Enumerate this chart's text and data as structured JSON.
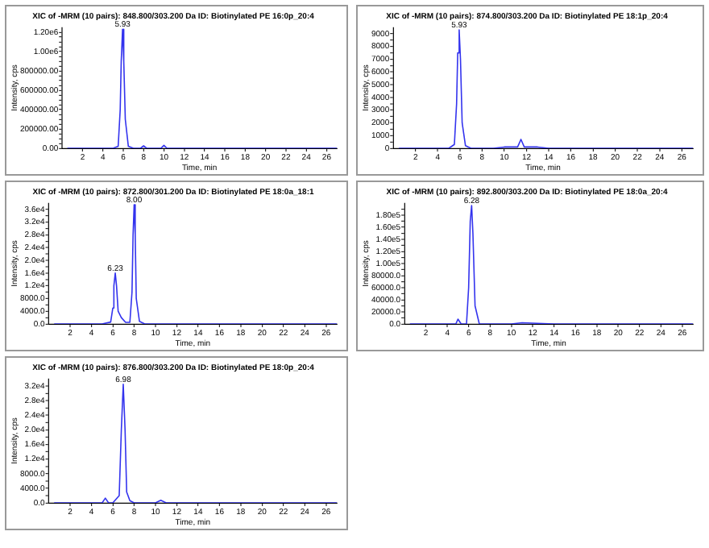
{
  "chart_data": [
    {
      "type": "line",
      "title": "XIC of -MRM (10 pairs): 848.800/303.200 Da ID: Biotinylated PE 16:0p_20:4",
      "xlabel": "Time, min",
      "ylabel": "Intensity, cps",
      "xlim": [
        0,
        27
      ],
      "xticks": [
        2,
        4,
        6,
        8,
        10,
        12,
        14,
        16,
        18,
        20,
        22,
        24,
        26
      ],
      "ylim": [
        0,
        1250000
      ],
      "yticks": [
        {
          "value": 0,
          "label": "0.00"
        },
        {
          "value": 50000,
          "label": null
        },
        {
          "value": 100000,
          "label": null
        },
        {
          "value": 150000,
          "label": null
        },
        {
          "value": 200000,
          "label": "200000.00"
        },
        {
          "value": 250000,
          "label": null
        },
        {
          "value": 300000,
          "label": null
        },
        {
          "value": 350000,
          "label": null
        },
        {
          "value": 400000,
          "label": "400000.00"
        },
        {
          "value": 450000,
          "label": null
        },
        {
          "value": 500000,
          "label": null
        },
        {
          "value": 550000,
          "label": null
        },
        {
          "value": 600000,
          "label": "600000.00"
        },
        {
          "value": 650000,
          "label": null
        },
        {
          "value": 700000,
          "label": null
        },
        {
          "value": 750000,
          "label": null
        },
        {
          "value": 800000,
          "label": "800000.00"
        },
        {
          "value": 850000,
          "label": null
        },
        {
          "value": 900000,
          "label": null
        },
        {
          "value": 950000,
          "label": null
        },
        {
          "value": 1000000,
          "label": "1.00e6"
        },
        {
          "value": 1050000,
          "label": null
        },
        {
          "value": 1100000,
          "label": null
        },
        {
          "value": 1150000,
          "label": null
        },
        {
          "value": 1200000,
          "label": "1.20e6"
        }
      ],
      "annotations": [
        {
          "text": "5.93",
          "x": 5.93,
          "y": 1230000
        }
      ],
      "series": [
        {
          "color": "#3333ee",
          "x": [
            0.5,
            2,
            4,
            5,
            5.5,
            5.7,
            5.8,
            5.93,
            6.05,
            6.2,
            6.5,
            7,
            7.7,
            8,
            8.3,
            9,
            9.7,
            10,
            10.3,
            11,
            14,
            18,
            22,
            26,
            27
          ],
          "values": [
            0,
            0,
            0,
            0,
            20000,
            400000,
            900000,
            1230000,
            900000,
            300000,
            20000,
            0,
            0,
            25000,
            0,
            0,
            0,
            30000,
            0,
            0,
            0,
            0,
            0,
            0,
            0
          ]
        }
      ]
    },
    {
      "type": "line",
      "title": "XIC of -MRM (10 pairs): 874.800/303.200 Da ID: Biotinylated PE 18:1p_20:4",
      "xlabel": "Time, min",
      "ylabel": "Intensity, cps",
      "xlim": [
        0,
        27
      ],
      "xticks": [
        2,
        4,
        6,
        8,
        10,
        12,
        14,
        16,
        18,
        20,
        22,
        24,
        26
      ],
      "ylim": [
        0,
        9500
      ],
      "yticks": [
        0,
        {
          "value": 500,
          "label": null
        },
        1000,
        {
          "value": 1500,
          "label": null
        },
        2000,
        {
          "value": 2500,
          "label": null
        },
        3000,
        {
          "value": 3500,
          "label": null
        },
        4000,
        {
          "value": 4500,
          "label": null
        },
        5000,
        {
          "value": 5500,
          "label": null
        },
        6000,
        {
          "value": 6500,
          "label": null
        },
        7000,
        {
          "value": 7500,
          "label": null
        },
        8000,
        {
          "value": 8500,
          "label": null
        },
        9000
      ],
      "annotations": [
        {
          "text": "5.93",
          "x": 5.93,
          "y": 9300
        }
      ],
      "series": [
        {
          "color": "#3333ee",
          "x": [
            0.5,
            2,
            4,
            5,
            5.5,
            5.7,
            5.8,
            5.93,
            6.05,
            6.2,
            6.5,
            7,
            9,
            10,
            11.2,
            11.5,
            11.8,
            12.5,
            13,
            14,
            18,
            22,
            26,
            27
          ],
          "values": [
            0,
            0,
            0,
            0,
            300,
            3500,
            7500,
            9300,
            7000,
            2000,
            200,
            0,
            0,
            100,
            100,
            700,
            100,
            100,
            100,
            0,
            0,
            0,
            0,
            0
          ]
        }
      ]
    },
    {
      "type": "line",
      "title": "XIC of -MRM (10 pairs): 872.800/301.200 Da ID: Biotinylated PE 18:0a_18:1",
      "xlabel": "Time, min",
      "ylabel": "Intensity, cps",
      "xlim": [
        0,
        27
      ],
      "xticks": [
        2,
        4,
        6,
        8,
        10,
        12,
        14,
        16,
        18,
        20,
        22,
        24,
        26
      ],
      "ylim": [
        0,
        38000
      ],
      "yticks": [
        {
          "value": 0,
          "label": "0.0"
        },
        {
          "value": 2000,
          "label": null
        },
        {
          "value": 4000,
          "label": "4000.0"
        },
        {
          "value": 6000,
          "label": null
        },
        {
          "value": 8000,
          "label": "8000.0"
        },
        {
          "value": 10000,
          "label": null
        },
        {
          "value": 12000,
          "label": "1.2e4"
        },
        {
          "value": 14000,
          "label": null
        },
        {
          "value": 16000,
          "label": "1.6e4"
        },
        {
          "value": 18000,
          "label": null
        },
        {
          "value": 20000,
          "label": "2.0e4"
        },
        {
          "value": 22000,
          "label": null
        },
        {
          "value": 24000,
          "label": "2.4e4"
        },
        {
          "value": 26000,
          "label": null
        },
        {
          "value": 28000,
          "label": "2.8e4"
        },
        {
          "value": 30000,
          "label": null
        },
        {
          "value": 32000,
          "label": "3.2e4"
        },
        {
          "value": 34000,
          "label": null
        },
        {
          "value": 36000,
          "label": "3.6e4"
        }
      ],
      "annotations": [
        {
          "text": "6.23",
          "x": 6.23,
          "y": 16000
        },
        {
          "text": "8.00",
          "x": 8.0,
          "y": 37500
        }
      ],
      "series": [
        {
          "color": "#3333ee",
          "x": [
            0.5,
            2,
            4,
            5,
            5.8,
            6,
            6.1,
            6.23,
            6.35,
            6.5,
            6.8,
            7.2,
            7.6,
            7.8,
            7.9,
            8.0,
            8.1,
            8.2,
            8.5,
            9,
            10,
            14,
            18,
            22,
            26,
            27
          ],
          "values": [
            0,
            0,
            0,
            0,
            600,
            5000,
            12000,
            16000,
            12000,
            4000,
            2000,
            500,
            500,
            10000,
            28000,
            37500,
            28000,
            8000,
            800,
            0,
            0,
            0,
            0,
            0,
            0,
            0
          ]
        }
      ]
    },
    {
      "type": "line",
      "title": "XIC of -MRM (10 pairs): 892.800/303.200 Da ID: Biotinylated PE 18:0a_20:4",
      "xlabel": "Time, min",
      "ylabel": "Intensity, cps",
      "xlim": [
        0,
        27
      ],
      "xticks": [
        2,
        4,
        6,
        8,
        10,
        12,
        14,
        16,
        18,
        20,
        22,
        24,
        26
      ],
      "ylim": [
        0,
        200000
      ],
      "yticks": [
        {
          "value": 0,
          "label": "0.0"
        },
        {
          "value": 10000,
          "label": null
        },
        {
          "value": 20000,
          "label": "20000.0"
        },
        {
          "value": 30000,
          "label": null
        },
        {
          "value": 40000,
          "label": "40000.0"
        },
        {
          "value": 50000,
          "label": null
        },
        {
          "value": 60000,
          "label": "60000.0"
        },
        {
          "value": 70000,
          "label": null
        },
        {
          "value": 80000,
          "label": "80000.0"
        },
        {
          "value": 90000,
          "label": null
        },
        {
          "value": 100000,
          "label": "1.00e5"
        },
        {
          "value": 110000,
          "label": null
        },
        {
          "value": 120000,
          "label": "1.20e5"
        },
        {
          "value": 130000,
          "label": null
        },
        {
          "value": 140000,
          "label": "1.40e5"
        },
        {
          "value": 150000,
          "label": null
        },
        {
          "value": 160000,
          "label": "1.60e5"
        },
        {
          "value": 170000,
          "label": null
        },
        {
          "value": 180000,
          "label": "1.80e5"
        },
        {
          "value": 190000,
          "label": null
        }
      ],
      "annotations": [
        {
          "text": "6.28",
          "x": 6.28,
          "y": 196000
        }
      ],
      "series": [
        {
          "color": "#3333ee",
          "x": [
            0.5,
            2,
            4,
            4.8,
            5.0,
            5.3,
            5.8,
            6.0,
            6.15,
            6.28,
            6.4,
            6.6,
            7,
            8,
            10,
            11,
            14,
            18,
            22,
            26,
            27
          ],
          "values": [
            0,
            0,
            0,
            0,
            8000,
            0,
            0,
            60000,
            170000,
            196000,
            150000,
            30000,
            0,
            0,
            0,
            2000,
            0,
            0,
            0,
            0,
            0
          ]
        }
      ]
    },
    {
      "type": "line",
      "title": "XIC of -MRM (10 pairs): 876.800/303.200 Da ID: Biotinylated PE 18:0p_20:4",
      "xlabel": "Time, min",
      "ylabel": "Intensity, cps",
      "xlim": [
        0,
        27
      ],
      "xticks": [
        2,
        4,
        6,
        8,
        10,
        12,
        14,
        16,
        18,
        20,
        22,
        24,
        26
      ],
      "ylim": [
        0,
        34000
      ],
      "yticks": [
        {
          "value": 0,
          "label": "0.0"
        },
        {
          "value": 2000,
          "label": null
        },
        {
          "value": 4000,
          "label": "4000.0"
        },
        {
          "value": 6000,
          "label": null
        },
        {
          "value": 8000,
          "label": "8000.0"
        },
        {
          "value": 10000,
          "label": null
        },
        {
          "value": 12000,
          "label": "1.2e4"
        },
        {
          "value": 14000,
          "label": null
        },
        {
          "value": 16000,
          "label": "1.6e4"
        },
        {
          "value": 18000,
          "label": null
        },
        {
          "value": 20000,
          "label": "2.0e4"
        },
        {
          "value": 22000,
          "label": null
        },
        {
          "value": 24000,
          "label": "2.4e4"
        },
        {
          "value": 26000,
          "label": null
        },
        {
          "value": 28000,
          "label": "2.8e4"
        },
        {
          "value": 30000,
          "label": null
        },
        {
          "value": 32000,
          "label": "3.2e4"
        }
      ],
      "annotations": [
        {
          "text": "6.98",
          "x": 6.98,
          "y": 32500
        }
      ],
      "series": [
        {
          "color": "#3333ee",
          "x": [
            0.5,
            2,
            4,
            5,
            5.3,
            5.6,
            6,
            6.6,
            6.8,
            6.98,
            7.15,
            7.3,
            7.6,
            8,
            10,
            10.5,
            11,
            14,
            18,
            22,
            26,
            27
          ],
          "values": [
            0,
            0,
            0,
            0,
            1300,
            0,
            0,
            2000,
            20000,
            32500,
            20000,
            3000,
            600,
            0,
            0,
            700,
            0,
            0,
            0,
            0,
            0,
            0
          ]
        }
      ]
    }
  ]
}
